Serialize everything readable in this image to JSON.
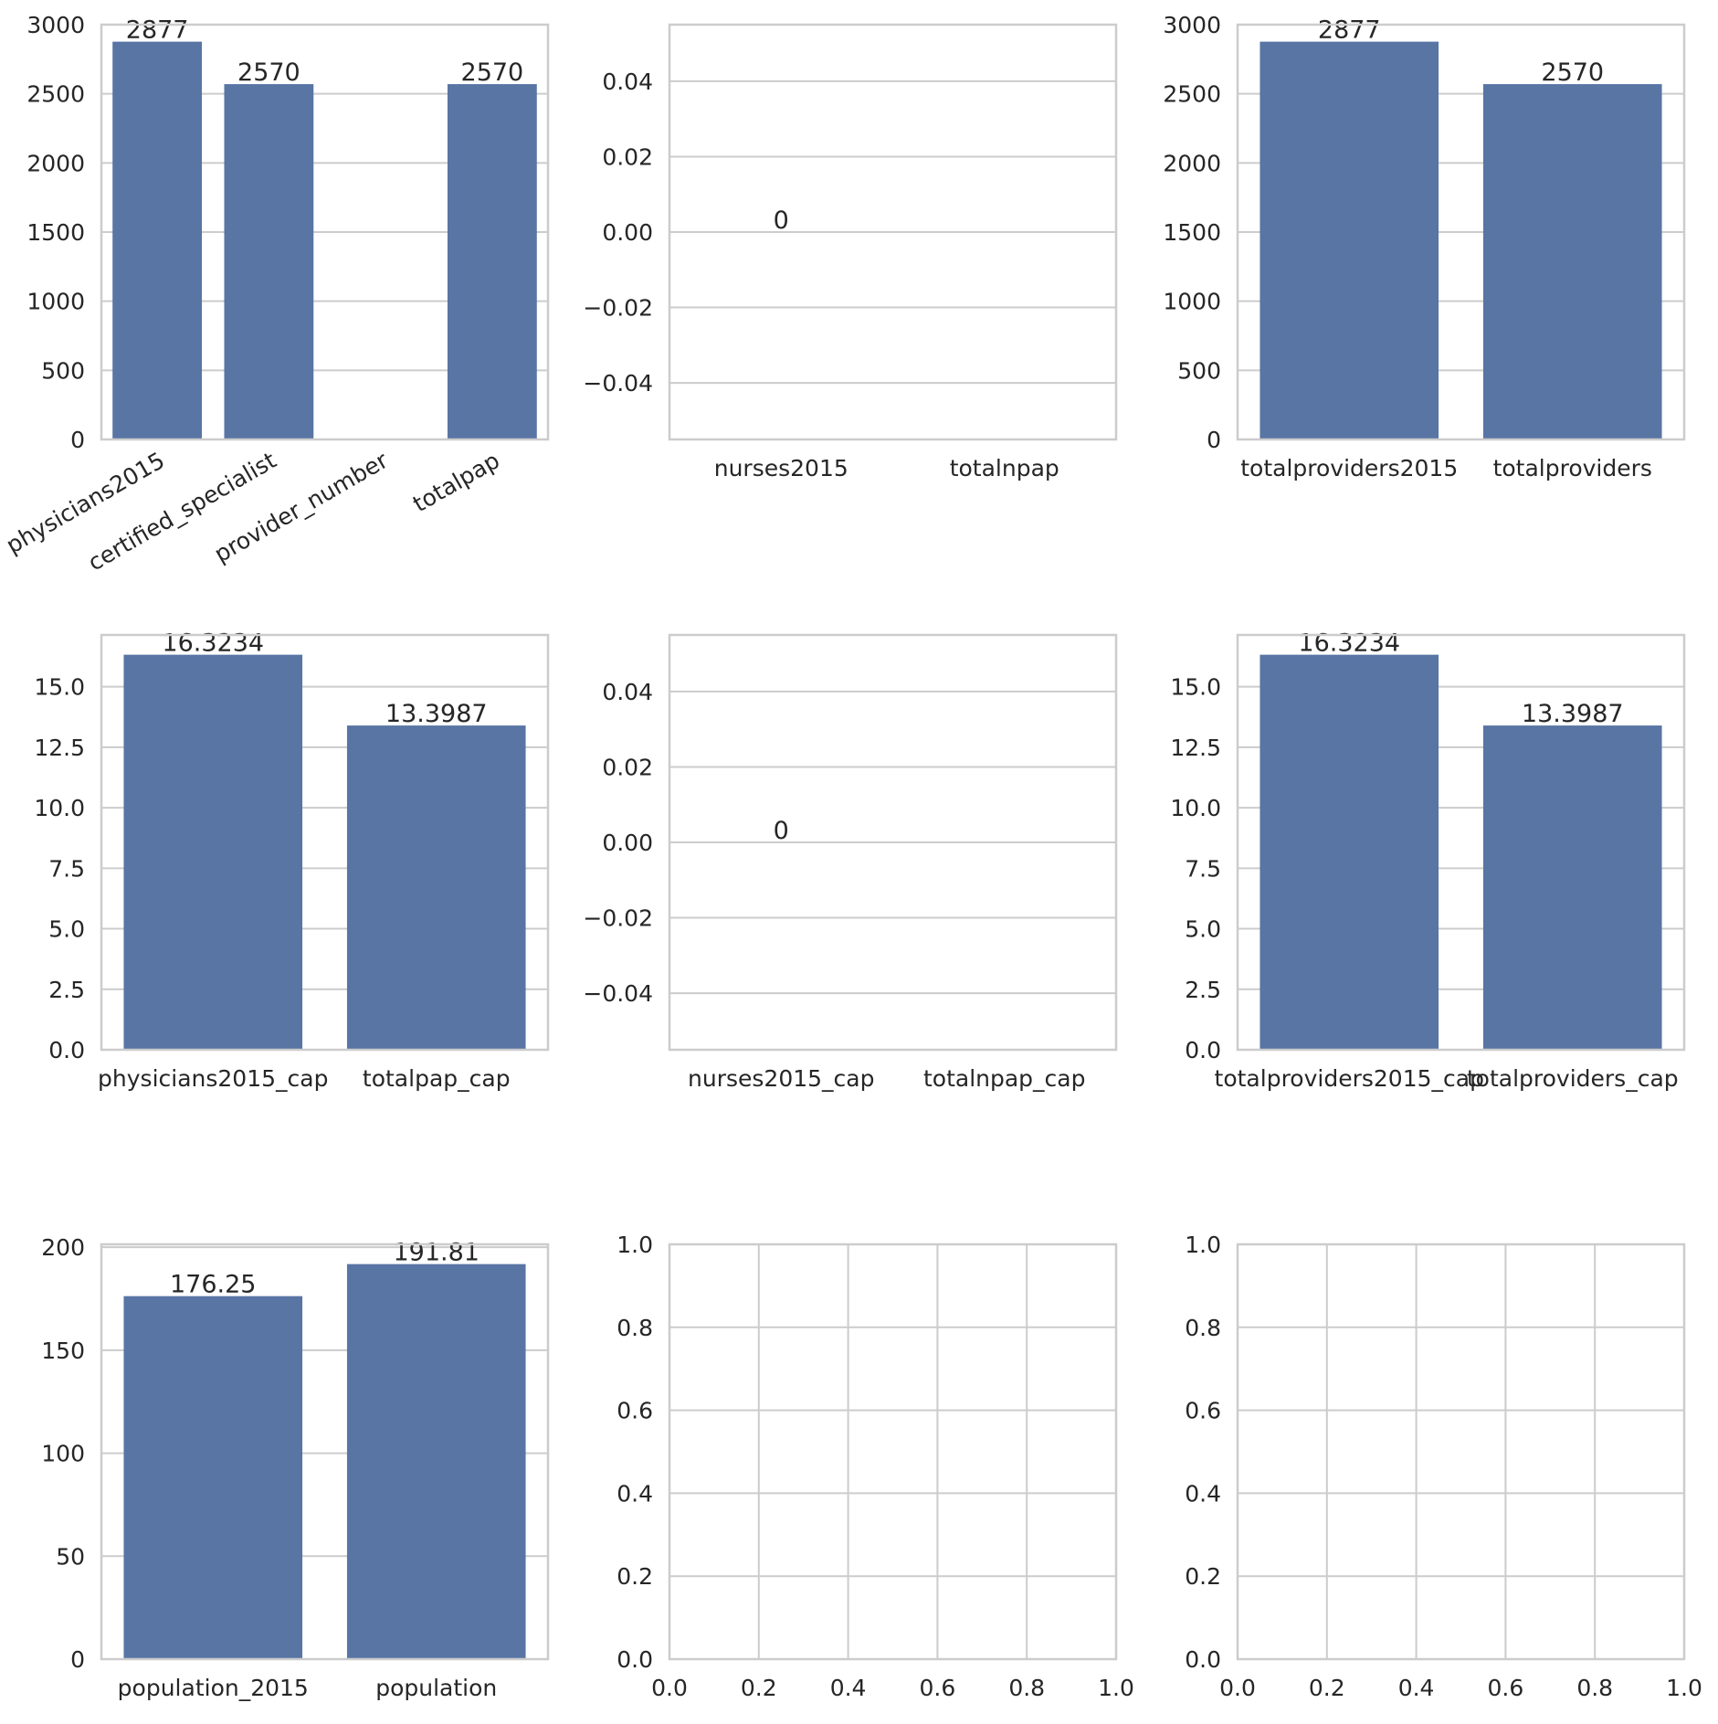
{
  "style": {
    "bar_color": "#5875a4",
    "grid_color": "#cccccc",
    "spine_color": "#cccccc",
    "text_color": "#262626",
    "background": "#ffffff"
  },
  "chart_data": [
    {
      "type": "bar",
      "categories": [
        "physicians2015",
        "certified_specialist",
        "provider_number",
        "totalpap"
      ],
      "values": [
        2877,
        2570,
        null,
        2570
      ],
      "bar_labels": [
        "2877",
        "2570",
        "",
        "2570"
      ],
      "ylim": [
        0,
        3000
      ],
      "yticks": [
        0,
        500,
        1000,
        1500,
        2000,
        2500,
        3000
      ],
      "ytick_labels": [
        "0",
        "500",
        "1000",
        "1500",
        "2000",
        "2500",
        "3000"
      ],
      "xtick_rotation": 30,
      "grid": "y"
    },
    {
      "type": "bar",
      "categories": [
        "nurses2015",
        "totalnpap"
      ],
      "values": [
        0,
        null
      ],
      "bar_labels": [
        "0",
        ""
      ],
      "ylim": [
        -0.055,
        0.055
      ],
      "yticks": [
        -0.04,
        -0.02,
        0,
        0.02,
        0.04
      ],
      "ytick_labels": [
        "−0.04",
        "−0.02",
        "0.00",
        "0.02",
        "0.04"
      ],
      "grid": "y"
    },
    {
      "type": "bar",
      "categories": [
        "totalproviders2015",
        "totalproviders"
      ],
      "values": [
        2877,
        2570
      ],
      "bar_labels": [
        "2877",
        "2570"
      ],
      "ylim": [
        0,
        3000
      ],
      "yticks": [
        0,
        500,
        1000,
        1500,
        2000,
        2500,
        3000
      ],
      "ytick_labels": [
        "0",
        "500",
        "1000",
        "1500",
        "2000",
        "2500",
        "3000"
      ],
      "grid": "y"
    },
    {
      "type": "bar",
      "categories": [
        "physicians2015_cap",
        "totalpap_cap"
      ],
      "values": [
        16.3234,
        13.3987
      ],
      "bar_labels": [
        "16.3234",
        "13.3987"
      ],
      "ylim": [
        0,
        17.14
      ],
      "yticks": [
        0,
        2.5,
        5,
        7.5,
        10,
        12.5,
        15
      ],
      "ytick_labels": [
        "0.0",
        "2.5",
        "5.0",
        "7.5",
        "10.0",
        "12.5",
        "15.0"
      ],
      "grid": "y"
    },
    {
      "type": "bar",
      "categories": [
        "nurses2015_cap",
        "totalnpap_cap"
      ],
      "values": [
        0,
        null
      ],
      "bar_labels": [
        "0",
        ""
      ],
      "ylim": [
        -0.055,
        0.055
      ],
      "yticks": [
        -0.04,
        -0.02,
        0,
        0.02,
        0.04
      ],
      "ytick_labels": [
        "−0.04",
        "−0.02",
        "0.00",
        "0.02",
        "0.04"
      ],
      "grid": "y"
    },
    {
      "type": "bar",
      "categories": [
        "totalproviders2015_cap",
        "totalproviders_cap"
      ],
      "values": [
        16.3234,
        13.3987
      ],
      "bar_labels": [
        "16.3234",
        "13.3987"
      ],
      "ylim": [
        0,
        17.14
      ],
      "yticks": [
        0,
        2.5,
        5,
        7.5,
        10,
        12.5,
        15
      ],
      "ytick_labels": [
        "0.0",
        "2.5",
        "5.0",
        "7.5",
        "10.0",
        "12.5",
        "15.0"
      ],
      "grid": "y"
    },
    {
      "type": "bar",
      "categories": [
        "population_2015",
        "population"
      ],
      "values": [
        176.25,
        191.81
      ],
      "bar_labels": [
        "176.25",
        "191.81"
      ],
      "ylim": [
        0,
        201.4
      ],
      "yticks": [
        0,
        50,
        100,
        150,
        200
      ],
      "ytick_labels": [
        "0",
        "50",
        "100",
        "150",
        "200"
      ],
      "grid": "y"
    },
    {
      "type": "empty",
      "xlim": [
        0,
        1
      ],
      "ylim": [
        0,
        1
      ],
      "xticks": [
        0,
        0.2,
        0.4,
        0.6,
        0.8,
        1
      ],
      "xtick_labels": [
        "0.0",
        "0.2",
        "0.4",
        "0.6",
        "0.8",
        "1.0"
      ],
      "yticks": [
        0,
        0.2,
        0.4,
        0.6,
        0.8,
        1
      ],
      "ytick_labels": [
        "0.0",
        "0.2",
        "0.4",
        "0.6",
        "0.8",
        "1.0"
      ],
      "grid": "both"
    },
    {
      "type": "empty",
      "xlim": [
        0,
        1
      ],
      "ylim": [
        0,
        1
      ],
      "xticks": [
        0,
        0.2,
        0.4,
        0.6,
        0.8,
        1
      ],
      "xtick_labels": [
        "0.0",
        "0.2",
        "0.4",
        "0.6",
        "0.8",
        "1.0"
      ],
      "yticks": [
        0,
        0.2,
        0.4,
        0.6,
        0.8,
        1
      ],
      "ytick_labels": [
        "0.0",
        "0.2",
        "0.4",
        "0.6",
        "0.8",
        "1.0"
      ],
      "grid": "both"
    }
  ]
}
